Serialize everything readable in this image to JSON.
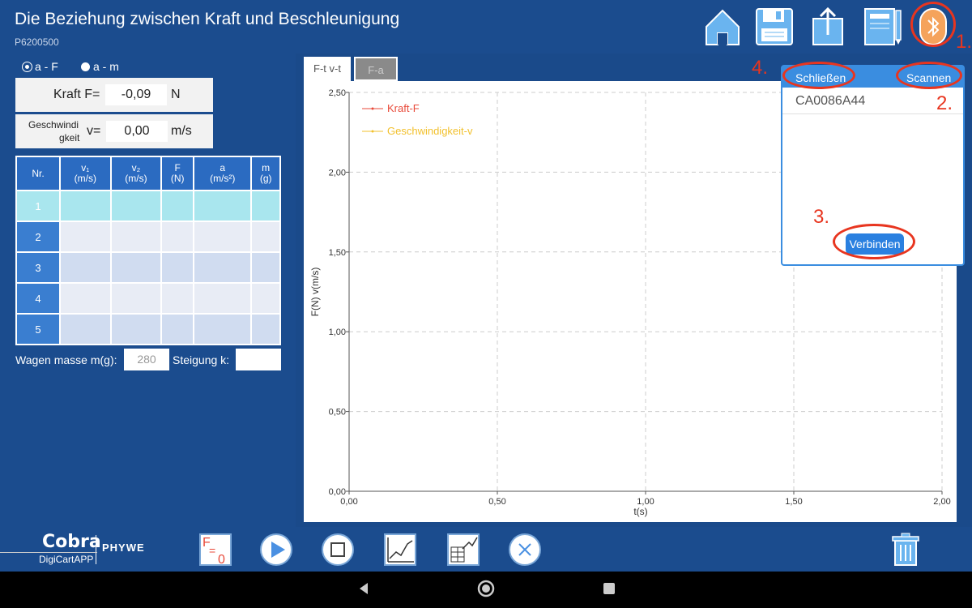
{
  "header": {
    "title": "Die Beziehung zwischen Kraft und Beschleunigung",
    "subtitle": "P6200500",
    "icons": [
      "home-icon",
      "save-icon",
      "export-icon",
      "notebook-icon",
      "bluetooth-icon"
    ]
  },
  "mode": {
    "options": [
      "a - F",
      "a - m"
    ],
    "selected": "a - F"
  },
  "readouts": {
    "force_label": "Kraft F=",
    "force_value": "-0,09",
    "force_unit": "N",
    "speed_label_1": "Geschwindi",
    "speed_label_2": "gkeit",
    "speed_symbol": "v=",
    "speed_value": "0,00",
    "speed_unit": "m/s"
  },
  "table": {
    "headers": [
      "Nr.",
      "v₁ (m/s)",
      "v₂ (m/s)",
      "F (N)",
      "a (m/s²)",
      "m (g)"
    ],
    "header_top": [
      "Nr.",
      "v₁",
      "v₂",
      "F",
      "a",
      "m"
    ],
    "header_bottom": [
      "",
      "(m/s)",
      "(m/s)",
      "(N)",
      "(m/s²)",
      "(g)"
    ],
    "rows": [
      "1",
      "2",
      "3",
      "4",
      "5"
    ]
  },
  "mass": {
    "label": "Wagen masse m(g):",
    "value": "280",
    "slope_label": "Steigung k:",
    "slope_value": ""
  },
  "tabs": [
    "F-t v-t",
    "F-a"
  ],
  "chart_data": {
    "type": "line",
    "title": "",
    "xlabel": "t(s)",
    "ylabel": "F(N) v(m/s)",
    "xlim": [
      0,
      2
    ],
    "ylim": [
      0,
      2.5
    ],
    "x_ticks": [
      "0,00",
      "0,50",
      "1,00",
      "1,50",
      "2,00"
    ],
    "y_ticks": [
      "0,00",
      "0,50",
      "1,00",
      "1,50",
      "2,00",
      "2,50"
    ],
    "grid": true,
    "legend_position": "top-left",
    "series": [
      {
        "name": "Kraft-F",
        "color": "#e84a3a",
        "values": []
      },
      {
        "name": "Geschwindigkeit-v",
        "color": "#f2c12e",
        "values": []
      }
    ]
  },
  "popup": {
    "close_label": "Schließen",
    "scan_label": "Scannen",
    "device": "CA0086A44",
    "connect_label": "Verbinden",
    "steps": [
      "1.",
      "2.",
      "3.",
      "4."
    ]
  },
  "toolbar": {
    "brand": "Cobra",
    "brand_sub": "DigiCartAPP",
    "brand_company": "PHYWE",
    "zero_icon_text": "F",
    "zero_icon_sub": "=",
    "zero_icon_val": "0",
    "icons": [
      "zero-force-icon",
      "play-icon",
      "stop-icon",
      "graph-icon",
      "table-graph-icon",
      "cancel-icon",
      "trash-icon"
    ]
  },
  "colors": {
    "header_bg": "#1b4c8e",
    "accent": "#3a8de0",
    "annotation": "#e8351f"
  }
}
